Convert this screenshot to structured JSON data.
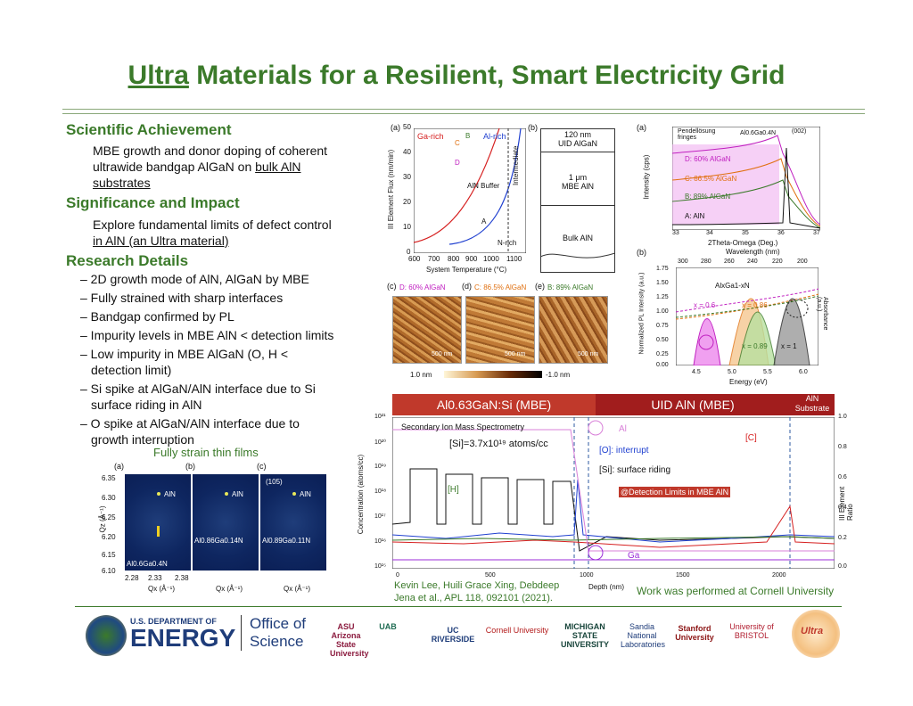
{
  "title": {
    "part1": "Ultra",
    "part2": " Materials for a Resilient, Smart Electricity Grid"
  },
  "sections": {
    "achievement": {
      "heading": "Scientific Achievement",
      "line1": "MBE growth and donor doping of coherent",
      "line2": "ultrawide bandgap AlGaN on ",
      "line2u": "bulk AlN",
      "line3": "substrates"
    },
    "significance": {
      "heading": "Significance and Impact",
      "line1": "Explore fundamental limits of defect control",
      "line2": "in AlN (an Ultra material)"
    },
    "research": {
      "heading": "Research Details",
      "bullets": [
        "– 2D growth mode of AlN, AlGaN by MBE",
        "– Fully strained with sharp interfaces",
        "– Bandgap confirmed by PL",
        "– Impurity levels in MBE AlN < detection limits",
        "– Low impurity in MBE AlGaN (O, H <",
        "   detection limit)",
        "– Si spike at AlGaN/AlN interface due to Si",
        "   surface riding in AlN",
        "– O spike at AlGaN/AlN interface due to",
        "   growth interruption"
      ]
    }
  },
  "strain": {
    "caption": "Fully strain thin films",
    "labels": [
      "(a)",
      "(b)",
      "(c)"
    ],
    "sub105": "(105)",
    "aln": "AlN",
    "films": [
      "Al0.6Ga0.4N",
      "Al0.86Ga0.14N",
      "Al0.89Ga0.11N"
    ],
    "ylabel": "Qz (Å⁻¹)",
    "xlabel": "Qx (Å⁻¹)",
    "yticks": [
      "6.35",
      "6.30",
      "6.25",
      "6.20",
      "6.15",
      "6.10"
    ],
    "xticks": [
      "2.28",
      "2.33",
      "2.38"
    ]
  },
  "phase": {
    "label_a": "(a)",
    "label_b": "(b)",
    "ga_rich": "Ga-rich",
    "al_rich": "Al-rich",
    "ylabel": "III Element Flux (nm/min)",
    "xlabel": "System Temperature (°C)",
    "yticks": [
      "50",
      "40",
      "30",
      "20",
      "10",
      "0"
    ],
    "xticks": [
      "600",
      "700",
      "800",
      "900",
      "1000",
      "1100"
    ],
    "aln_buffer": "AlN Buffer",
    "intermediate": "Intermediate",
    "n_rich": "N-rich",
    "pts": [
      "A",
      "B",
      "C",
      "D"
    ]
  },
  "stack": {
    "layer1": "120 nm\nUID AlGaN",
    "layer2": "1 μm\nMBE AlN",
    "layer3": "Bulk AlN"
  },
  "afm": {
    "labels": [
      "(c)",
      "(d)",
      "(e)"
    ],
    "titles": [
      "D: 60% AlGaN",
      "C: 86.5% AlGaN",
      "B: 89% AlGaN"
    ],
    "scale": "500 nm",
    "cb_low": "1.0 nm",
    "cb_high": "-1.0 nm"
  },
  "xrd": {
    "label": "(a)",
    "pend": "Pendellösung\nfringes",
    "sample": "Al0.6Ga0.4N",
    "refl": "(002)",
    "curves": [
      "D: 60% AlGaN",
      "C: 86.5% AlGaN",
      "B: 89% AlGaN",
      "A: AlN"
    ],
    "ylabel": "Intensity (cps)",
    "xlabel": "2Theta-Omega (Deg.)",
    "xticks": [
      "33",
      "34",
      "35",
      "36",
      "37"
    ]
  },
  "pl": {
    "label": "(b)",
    "top": "Wavelength (nm)",
    "topticks": [
      "300",
      "280",
      "260",
      "240",
      "220",
      "200"
    ],
    "formula": "AlxGa1-xN",
    "x": [
      "x = 0.6",
      "x = 0.86",
      "x = 0.89",
      "x = 1"
    ],
    "ylabel": "Normalized PL Intensity (a.u.)",
    "y2label": "Absorbance (a.u.)",
    "xlabel": "Energy (eV)",
    "xticks": [
      "4.5",
      "5.0",
      "5.5",
      "6.0"
    ],
    "yticks": [
      "1.75",
      "1.50",
      "1.25",
      "1.00",
      "0.75",
      "0.50",
      "0.25",
      "0.00"
    ]
  },
  "sims": {
    "band1": "Al0.63GaN:Si (MBE)",
    "band2": "UID AlN (MBE)",
    "band3": "AlN\nSubstrate",
    "title": "Secondary Ion Mass Spectrometry",
    "si": "[Si]=3.7x10¹⁹ atoms/cc",
    "o": "[O]: interrupt",
    "si2": "[Si]: surface riding",
    "h": "[H]",
    "c": "[C]",
    "al": "Al",
    "ga": "Ga",
    "detect": "@Detection Limits in MBE AlN",
    "ylabel": "Concentration (atoms/cc)",
    "y2label": "III Element Ratio",
    "xlabel": "Depth (nm)",
    "xticks": [
      "0",
      "500",
      "1000",
      "1500",
      "2000"
    ],
    "yticks": [
      "10²¹",
      "10²⁰",
      "10¹⁹",
      "10¹⁸",
      "10¹⁷",
      "10¹⁶",
      "10¹⁵"
    ],
    "y2ticks": [
      "1.0",
      "0.8",
      "0.6",
      "0.4",
      "0.2",
      "0.0"
    ]
  },
  "credits": {
    "authors": "Kevin Lee, Huili Grace Xing, Debdeep\nJena et al., APL 118, 092101 (2021).",
    "cornell": "Work was performed at Cornell University"
  },
  "footer": {
    "doe1": "U.S. DEPARTMENT OF",
    "doe2": "ENERGY",
    "office1": "Office of",
    "office2": "Science",
    "logos": [
      "ASU Arizona State University",
      "UAB",
      "UC RIVERSIDE",
      "Cornell University",
      "MICHIGAN STATE UNIVERSITY",
      "Sandia National Laboratories",
      "Stanford University",
      "University of BRISTOL",
      "Ultra"
    ]
  },
  "colors": {
    "green": "#3b7a2a",
    "darkred": "#a11d1d",
    "red": "#c0392b"
  }
}
